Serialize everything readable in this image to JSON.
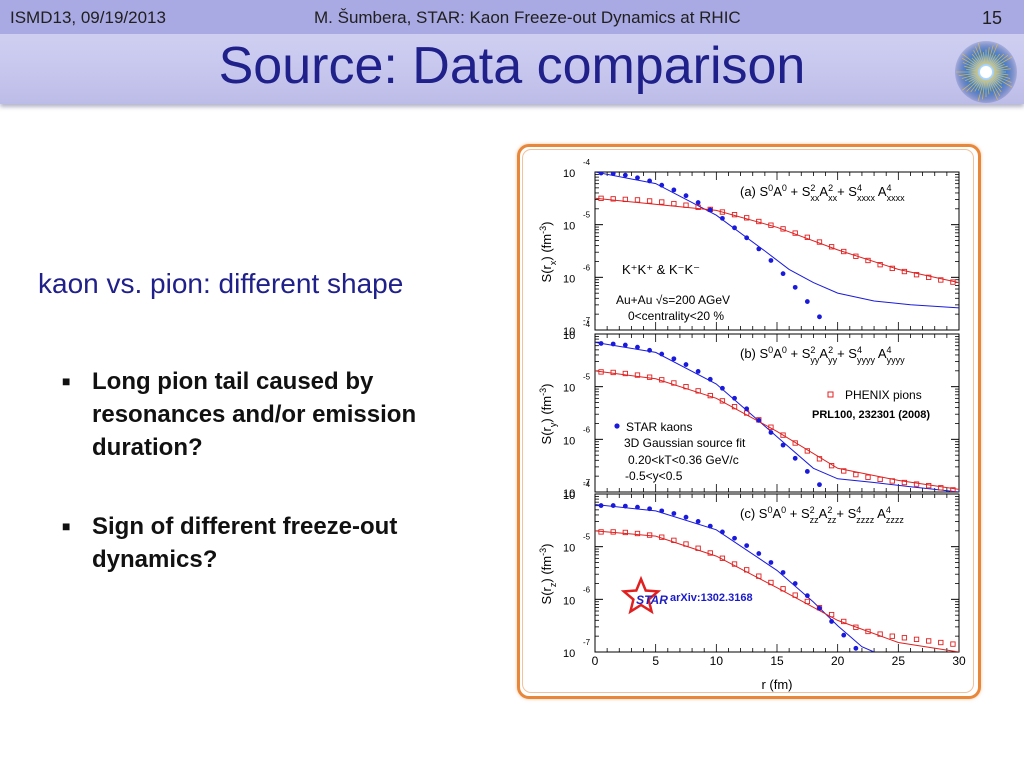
{
  "header": {
    "left": "ISMD13, 09/19/2013",
    "center": "M. Šumbera, STAR: Kaon Freeze-out Dynamics at RHIC",
    "page": "15"
  },
  "title": "Source: Data comparison",
  "logo": {
    "icon": "star-collision-logo-icon"
  },
  "subtitle": "kaon vs. pion: different shape",
  "bullets": [
    {
      "icon": "square-bullet-icon",
      "text": "Long pion tail caused by resonances and/or emission duration?"
    },
    {
      "icon": "square-bullet-icon",
      "text": "Sign of different freeze-out dynamics?"
    }
  ],
  "colors": {
    "title": "#20208a",
    "kaon": "#1a1adc",
    "pion": "#e02020",
    "frame": "#e8873a"
  },
  "chart_data": {
    "type": "scatter",
    "xlabel": "r (fm)",
    "xlim": [
      0,
      30
    ],
    "x_ticks": [
      "0",
      "5",
      "10",
      "15",
      "20",
      "25",
      "30"
    ],
    "log_y": true,
    "ylim_exp": [
      -7,
      -4
    ],
    "y_tick_labels": [
      {
        "base": "10",
        "exp": "-4"
      },
      {
        "base": "10",
        "exp": "-5"
      },
      {
        "base": "10",
        "exp": "-6"
      },
      {
        "base": "10",
        "exp": "-7"
      }
    ],
    "panels": [
      {
        "formula": {
          "lead": "(a) S",
          "p1": "A",
          "p2": " + S",
          "p3": "A",
          "p4": "+ S",
          "p5": " A",
          "sup0": "0",
          "sup1": "0",
          "sup2": "2",
          "sup3": "2",
          "sup4": "4",
          "sup5": "4",
          "sub2": "xx",
          "sub3": "xx",
          "sub4": "xxxx",
          "sub5": "xxxx"
        },
        "ylabel": {
          "pre": "S(r",
          "sub": "x",
          "mid": ") (fm",
          "sup": "-3",
          "post": ")"
        },
        "kaon_points": [
          [
            0.5,
            -4.02
          ],
          [
            1.5,
            -4.03
          ],
          [
            2.5,
            -4.06
          ],
          [
            3.5,
            -4.11
          ],
          [
            4.5,
            -4.17
          ],
          [
            5.5,
            -4.25
          ],
          [
            6.5,
            -4.34
          ],
          [
            7.5,
            -4.45
          ],
          [
            8.5,
            -4.58
          ],
          [
            9.5,
            -4.72
          ],
          [
            10.5,
            -4.88
          ],
          [
            11.5,
            -5.06
          ],
          [
            12.5,
            -5.25
          ],
          [
            13.5,
            -5.46
          ],
          [
            14.5,
            -5.68
          ],
          [
            15.5,
            -5.93
          ],
          [
            16.5,
            -6.19
          ],
          [
            17.5,
            -6.46
          ],
          [
            18.5,
            -6.75
          ],
          [
            19.5,
            -7.05
          ]
        ],
        "pion_points": [
          [
            0.5,
            -4.5
          ],
          [
            1.5,
            -4.51
          ],
          [
            2.5,
            -4.52
          ],
          [
            3.5,
            -4.53
          ],
          [
            4.5,
            -4.55
          ],
          [
            5.5,
            -4.57
          ],
          [
            6.5,
            -4.6
          ],
          [
            7.5,
            -4.63
          ],
          [
            8.5,
            -4.67
          ],
          [
            9.5,
            -4.71
          ],
          [
            10.5,
            -4.76
          ],
          [
            11.5,
            -4.81
          ],
          [
            12.5,
            -4.87
          ],
          [
            13.5,
            -4.94
          ],
          [
            14.5,
            -5.01
          ],
          [
            15.5,
            -5.08
          ],
          [
            16.5,
            -5.16
          ],
          [
            17.5,
            -5.24
          ],
          [
            18.5,
            -5.33
          ],
          [
            19.5,
            -5.42
          ],
          [
            20.5,
            -5.51
          ],
          [
            21.5,
            -5.6
          ],
          [
            22.5,
            -5.68
          ],
          [
            23.5,
            -5.76
          ],
          [
            24.5,
            -5.83
          ],
          [
            25.5,
            -5.89
          ],
          [
            26.5,
            -5.95
          ],
          [
            27.5,
            -6.0
          ],
          [
            28.5,
            -6.05
          ],
          [
            29.5,
            -6.09
          ]
        ],
        "kaon_band": [
          [
            0,
            -4.0
          ],
          [
            5,
            -4.22
          ],
          [
            10,
            -4.82
          ],
          [
            14,
            -5.5
          ],
          [
            16,
            -5.85
          ],
          [
            18,
            -6.1
          ],
          [
            20,
            -6.3
          ],
          [
            23,
            -6.45
          ],
          [
            26,
            -6.52
          ],
          [
            30,
            -6.58
          ]
        ],
        "pion_band": [
          [
            0,
            -4.5
          ],
          [
            10,
            -4.73
          ],
          [
            15,
            -5.05
          ],
          [
            20,
            -5.48
          ],
          [
            25,
            -5.85
          ],
          [
            30,
            -6.1
          ]
        ],
        "labels": [
          {
            "id": "kk",
            "text": "K⁺K⁺ & K⁻K⁻"
          },
          {
            "id": "energy",
            "text": "Au+Au √s=200 AGeV"
          },
          {
            "id": "cent",
            "text": "0<centrality<20 %"
          }
        ]
      },
      {
        "formula": {
          "lead": "(b) S",
          "p1": "A",
          "p2": " + S",
          "p3": "A",
          "p4": "+ S",
          "p5": " A",
          "sup0": "0",
          "sup1": "0",
          "sup2": "2",
          "sup3": "2",
          "sup4": "4",
          "sup5": "4",
          "sub2": "yy",
          "sub3": "yy",
          "sub4": "yyyy",
          "sub5": "yyyy"
        },
        "ylabel": {
          "pre": "S(r",
          "sub": "y",
          "mid": ") (fm",
          "sup": "-3",
          "post": ")"
        },
        "kaon_points": [
          [
            0.5,
            -4.18
          ],
          [
            1.5,
            -4.19
          ],
          [
            2.5,
            -4.21
          ],
          [
            3.5,
            -4.25
          ],
          [
            4.5,
            -4.31
          ],
          [
            5.5,
            -4.38
          ],
          [
            6.5,
            -4.47
          ],
          [
            7.5,
            -4.58
          ],
          [
            8.5,
            -4.71
          ],
          [
            9.5,
            -4.86
          ],
          [
            10.5,
            -5.03
          ],
          [
            11.5,
            -5.22
          ],
          [
            12.5,
            -5.42
          ],
          [
            13.5,
            -5.64
          ],
          [
            14.5,
            -5.87
          ],
          [
            15.5,
            -6.11
          ],
          [
            16.5,
            -6.36
          ],
          [
            17.5,
            -6.61
          ],
          [
            18.5,
            -6.86
          ],
          [
            19.5,
            -7.1
          ]
        ],
        "pion_points": [
          [
            0.5,
            -4.72
          ],
          [
            1.5,
            -4.73
          ],
          [
            2.5,
            -4.75
          ],
          [
            3.5,
            -4.78
          ],
          [
            4.5,
            -4.82
          ],
          [
            5.5,
            -4.87
          ],
          [
            6.5,
            -4.93
          ],
          [
            7.5,
            -5.0
          ],
          [
            8.5,
            -5.08
          ],
          [
            9.5,
            -5.17
          ],
          [
            10.5,
            -5.27
          ],
          [
            11.5,
            -5.38
          ],
          [
            12.5,
            -5.5
          ],
          [
            13.5,
            -5.63
          ],
          [
            14.5,
            -5.77
          ],
          [
            15.5,
            -5.92
          ],
          [
            16.5,
            -6.07
          ],
          [
            17.5,
            -6.22
          ],
          [
            18.5,
            -6.37
          ],
          [
            19.5,
            -6.5
          ],
          [
            20.5,
            -6.6
          ],
          [
            21.5,
            -6.67
          ],
          [
            22.5,
            -6.72
          ],
          [
            23.5,
            -6.76
          ],
          [
            24.5,
            -6.79
          ],
          [
            25.5,
            -6.82
          ],
          [
            26.5,
            -6.85
          ],
          [
            27.5,
            -6.88
          ],
          [
            28.5,
            -6.92
          ],
          [
            29.5,
            -6.96
          ]
        ],
        "kaon_band": [
          [
            0,
            -4.16
          ],
          [
            5,
            -4.35
          ],
          [
            10,
            -4.95
          ],
          [
            15,
            -5.95
          ],
          [
            18,
            -6.55
          ],
          [
            20,
            -6.75
          ],
          [
            23,
            -6.82
          ],
          [
            26,
            -6.9
          ],
          [
            30,
            -7.0
          ]
        ],
        "pion_band": [
          [
            0,
            -4.7
          ],
          [
            5,
            -4.85
          ],
          [
            10,
            -5.22
          ],
          [
            15,
            -5.85
          ],
          [
            20,
            -6.55
          ],
          [
            25,
            -6.78
          ],
          [
            30,
            -6.95
          ]
        ],
        "labels": [
          {
            "id": "phenix",
            "text": "PHENIX pions"
          },
          {
            "id": "prl",
            "text": "PRL100, 232301 (2008)"
          },
          {
            "id": "star",
            "text": "STAR kaons"
          },
          {
            "id": "gauss",
            "text": "3D Gaussian source fit"
          },
          {
            "id": "kt",
            "text": "0.20<kT<0.36 GeV/c"
          },
          {
            "id": "rap",
            "text": "-0.5<y<0.5"
          }
        ]
      },
      {
        "formula": {
          "lead": "(c) S",
          "p1": "A",
          "p2": " + S",
          "p3": "A",
          "p4": "+ S",
          "p5": " A",
          "sup0": "0",
          "sup1": "0",
          "sup2": "2",
          "sup3": "2",
          "sup4": "4",
          "sup5": "4",
          "sub2": "zz",
          "sub3": "zz",
          "sub4": "zzzz",
          "sub5": "zzzz"
        },
        "ylabel": {
          "pre": "S(r",
          "sub": "z",
          "mid": ") (fm",
          "sup": "-3",
          "post": ")"
        },
        "kaon_points": [
          [
            0.5,
            -4.22
          ],
          [
            1.5,
            -4.22
          ],
          [
            2.5,
            -4.23
          ],
          [
            3.5,
            -4.25
          ],
          [
            4.5,
            -4.28
          ],
          [
            5.5,
            -4.32
          ],
          [
            6.5,
            -4.37
          ],
          [
            7.5,
            -4.44
          ],
          [
            8.5,
            -4.52
          ],
          [
            9.5,
            -4.61
          ],
          [
            10.5,
            -4.72
          ],
          [
            11.5,
            -4.84
          ],
          [
            12.5,
            -4.98
          ],
          [
            13.5,
            -5.13
          ],
          [
            14.5,
            -5.3
          ],
          [
            15.5,
            -5.49
          ],
          [
            16.5,
            -5.7
          ],
          [
            17.5,
            -5.93
          ],
          [
            18.5,
            -6.17
          ],
          [
            19.5,
            -6.42
          ],
          [
            20.5,
            -6.68
          ],
          [
            21.5,
            -6.93
          ]
        ],
        "pion_points": [
          [
            0.5,
            -4.72
          ],
          [
            1.5,
            -4.72
          ],
          [
            2.5,
            -4.73
          ],
          [
            3.5,
            -4.75
          ],
          [
            4.5,
            -4.78
          ],
          [
            5.5,
            -4.82
          ],
          [
            6.5,
            -4.88
          ],
          [
            7.5,
            -4.95
          ],
          [
            8.5,
            -5.03
          ],
          [
            9.5,
            -5.12
          ],
          [
            10.5,
            -5.22
          ],
          [
            11.5,
            -5.33
          ],
          [
            12.5,
            -5.44
          ],
          [
            13.5,
            -5.56
          ],
          [
            14.5,
            -5.68
          ],
          [
            15.5,
            -5.8
          ],
          [
            16.5,
            -5.92
          ],
          [
            17.5,
            -6.04
          ],
          [
            18.5,
            -6.16
          ],
          [
            19.5,
            -6.29
          ],
          [
            20.5,
            -6.42
          ],
          [
            21.5,
            -6.53
          ],
          [
            22.5,
            -6.61
          ],
          [
            23.5,
            -6.66
          ],
          [
            24.5,
            -6.7
          ],
          [
            25.5,
            -6.73
          ],
          [
            26.5,
            -6.76
          ],
          [
            27.5,
            -6.79
          ],
          [
            28.5,
            -6.82
          ],
          [
            29.5,
            -6.85
          ]
        ],
        "kaon_band": [
          [
            0,
            -4.2
          ],
          [
            5,
            -4.32
          ],
          [
            10,
            -4.68
          ],
          [
            15,
            -5.45
          ],
          [
            18,
            -6.05
          ],
          [
            20,
            -6.5
          ],
          [
            22,
            -6.9
          ],
          [
            23,
            -7.0
          ]
        ],
        "pion_band": [
          [
            0,
            -4.7
          ],
          [
            5,
            -4.8
          ],
          [
            10,
            -5.18
          ],
          [
            15,
            -5.78
          ],
          [
            20,
            -6.4
          ],
          [
            25,
            -6.82
          ],
          [
            30,
            -7.0
          ]
        ],
        "labels": [
          {
            "id": "starlogo",
            "text": "STAR"
          },
          {
            "id": "arxiv",
            "text": "arXiv:1302.3168"
          }
        ]
      }
    ]
  }
}
